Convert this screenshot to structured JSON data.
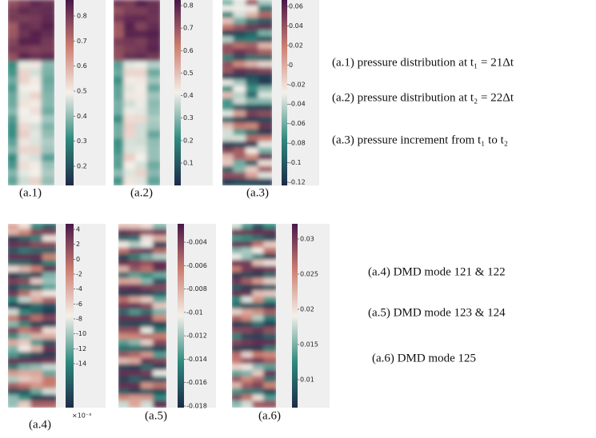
{
  "panels": [
    {
      "label": "(a.1)",
      "colorbar_ticks": [
        "0.8",
        "0.7",
        "0.6",
        "0.5",
        "0.4",
        "0.3",
        "0.2"
      ]
    },
    {
      "label": "(a.2)",
      "colorbar_ticks": [
        "0.8",
        "0.7",
        "0.6",
        "0.5",
        "0.4",
        "0.3",
        "0.2",
        "0.1"
      ]
    },
    {
      "label": "(a.3)",
      "colorbar_ticks": [
        "0.06",
        "0.04",
        "0.02",
        "0",
        "-0.02",
        "-0.04",
        "-0.06",
        "-0.08",
        "-0.1",
        "-0.12"
      ]
    },
    {
      "label": "(a.4)",
      "colorbar_ticks": [
        "4",
        "2",
        "0",
        "-2",
        "-4",
        "-6",
        "-8",
        "-10",
        "-12",
        "-14"
      ],
      "multiplier": "×10⁻³"
    },
    {
      "label": "(a.5)",
      "colorbar_ticks": [
        "-0.004",
        "-0.006",
        "-0.008",
        "-0.01",
        "-0.012",
        "-0.014",
        "-0.016",
        "-0.018"
      ]
    },
    {
      "label": "(a.6)",
      "colorbar_ticks": [
        "0.03",
        "0.025",
        "0.02",
        "0.015",
        "0.01"
      ]
    }
  ],
  "captions": [
    "(a.1) pressure distribution at t₁ = 21Δt",
    "(a.2) pressure distribution at t₂ = 22Δt",
    "(a.3) pressure increment from t₁ to t₂",
    "(a.4) DMD mode 121 & 122",
    "(a.5) DMD mode 123 & 124",
    "(a.6) DMD mode 125"
  ]
}
